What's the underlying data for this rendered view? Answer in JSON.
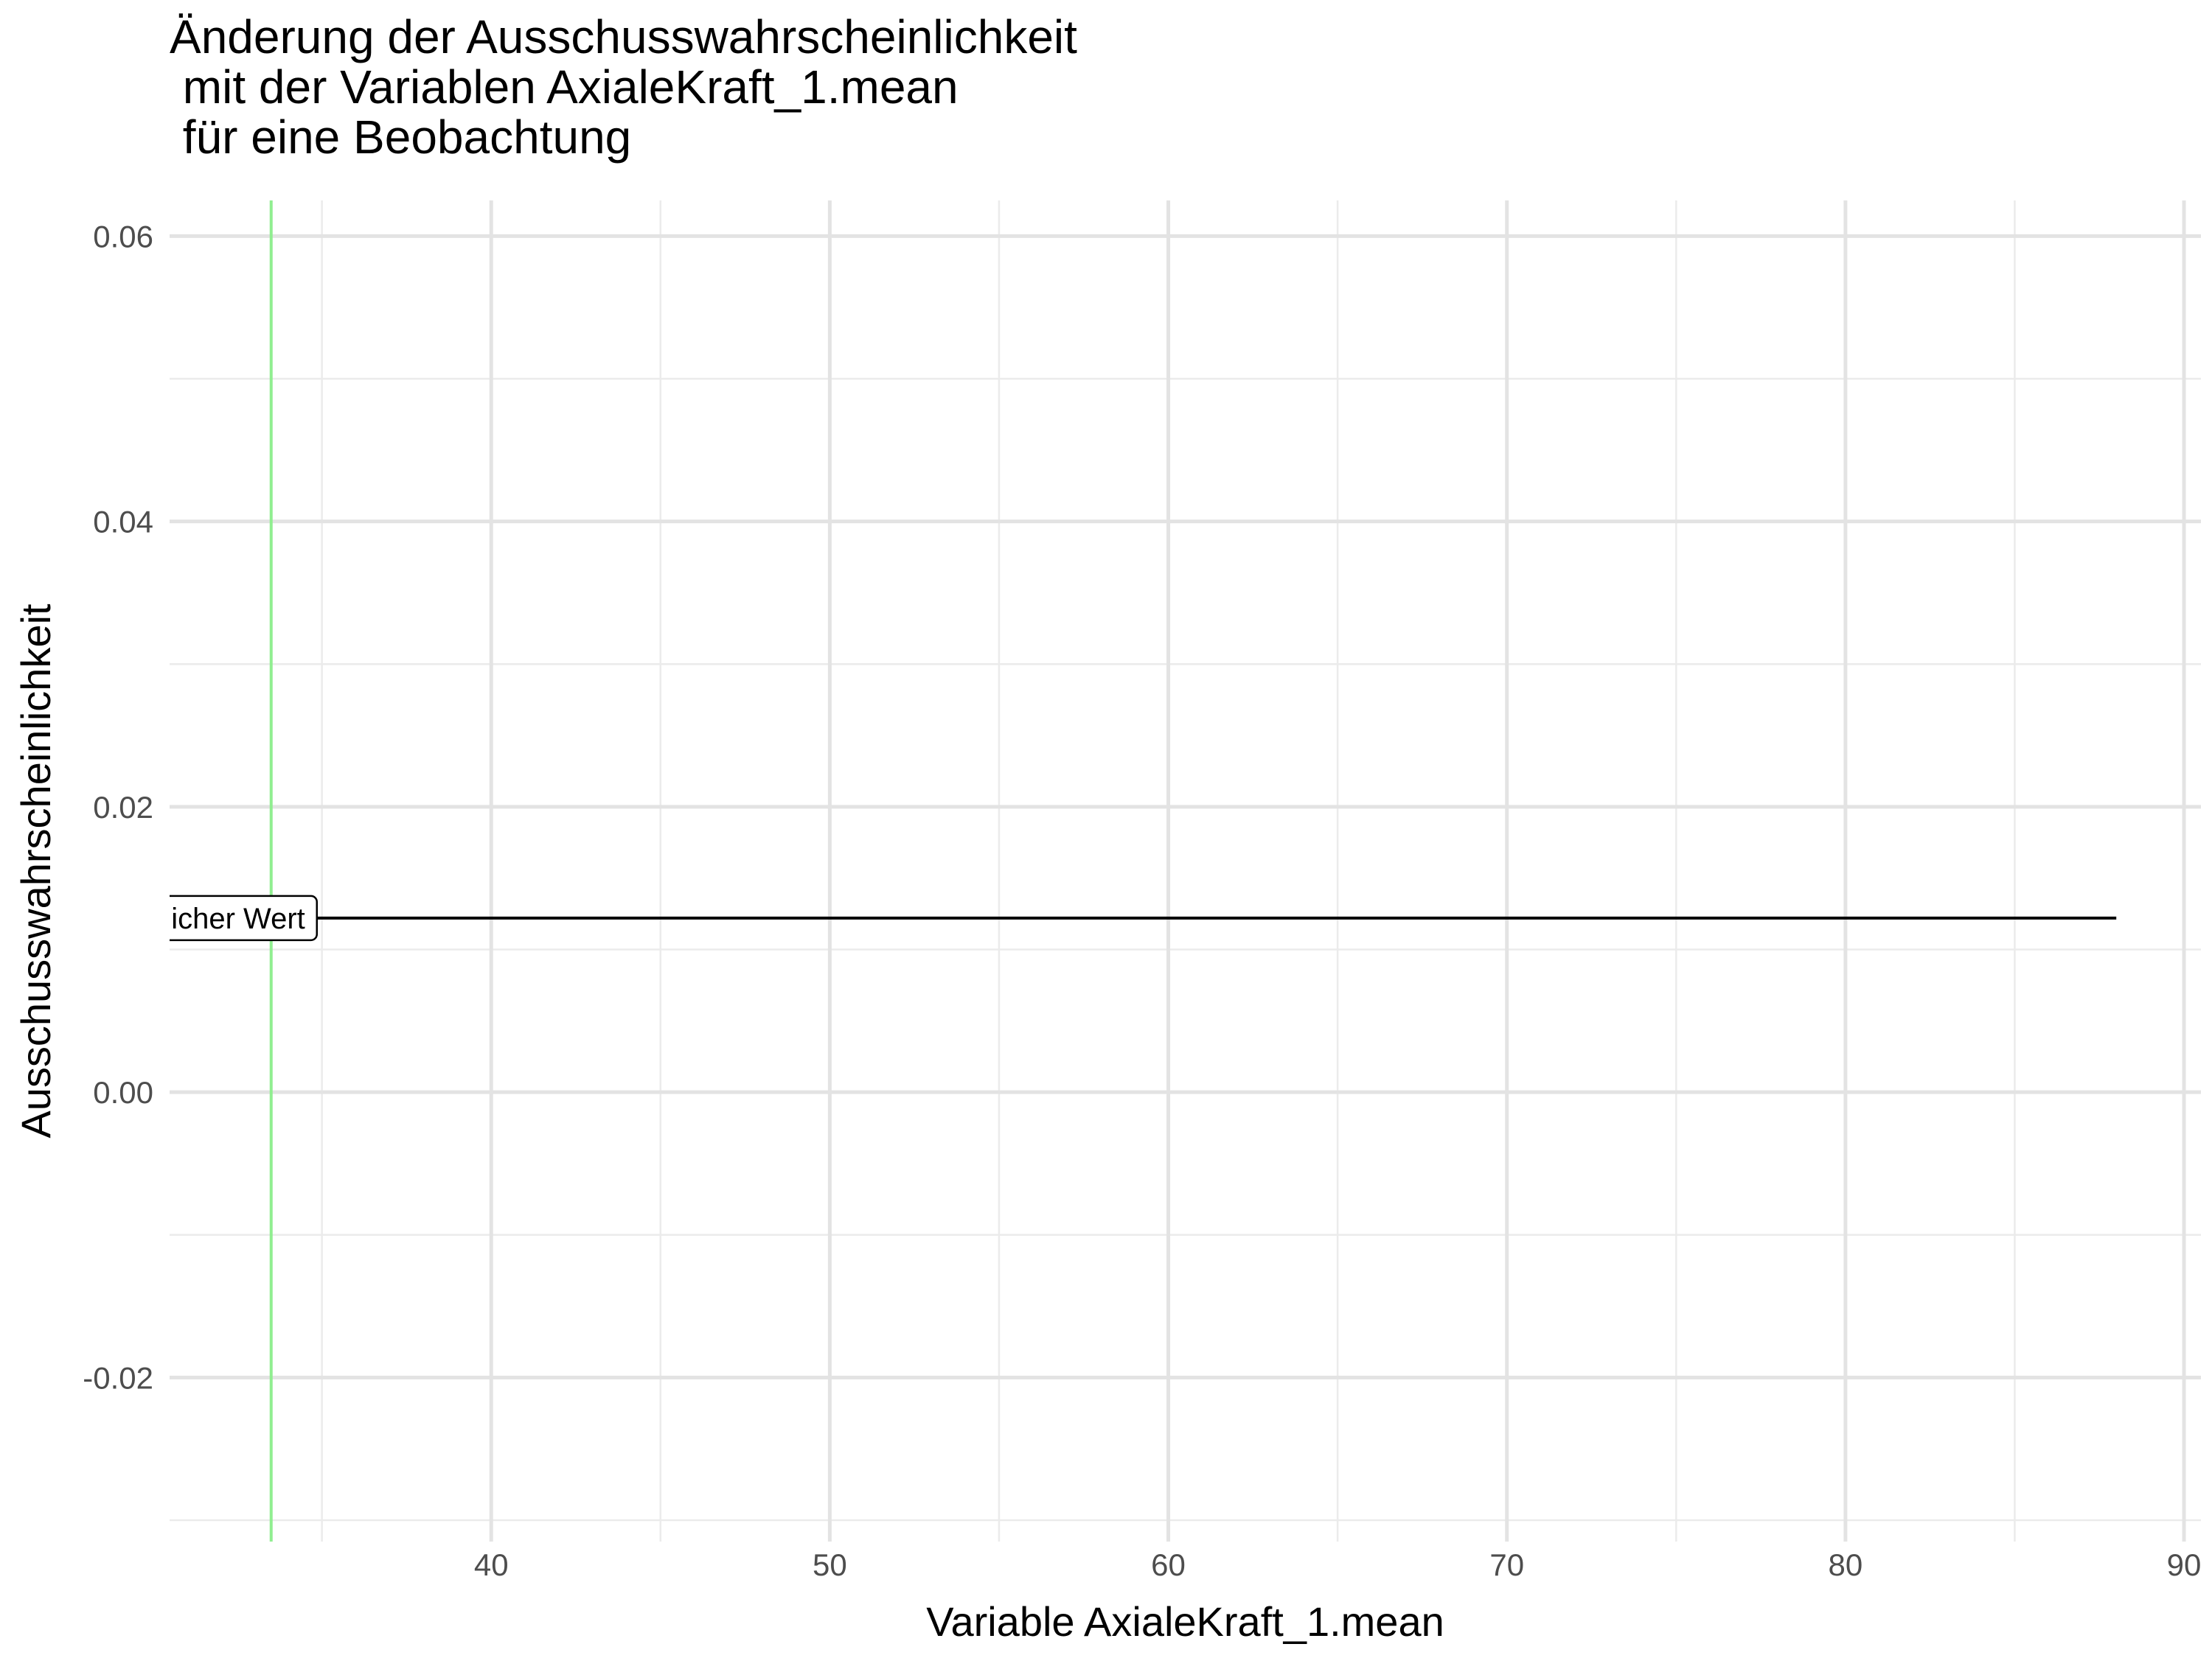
{
  "chart_data": {
    "type": "line",
    "title_lines": [
      "Änderung der Ausschusswahrscheinlichkeit",
      " mit der Variablen AxialeKraft_1.mean",
      " für eine Beobachtung"
    ],
    "xlabel": "Variable AxialeKraft_1.mean",
    "ylabel": "Ausschusswahrscheinlichkeit",
    "xlim": [
      30.5,
      90.5
    ],
    "ylim": [
      -0.0315,
      0.0625
    ],
    "x_ticks": [
      40,
      50,
      60,
      70,
      80,
      90
    ],
    "x_tick_labels": [
      "40",
      "50",
      "60",
      "70",
      "80",
      "90"
    ],
    "x_minor_ticks": [
      35,
      45,
      55,
      65,
      75,
      85
    ],
    "y_ticks": [
      -0.02,
      0.0,
      0.02,
      0.04,
      0.06
    ],
    "y_tick_labels": [
      "-0.02",
      "0.00",
      "0.02",
      "0.04",
      "0.06"
    ],
    "y_minor_ticks": [
      -0.03,
      -0.01,
      0.01,
      0.03,
      0.05
    ],
    "grid": true,
    "series": [
      {
        "x": [
          31.0,
          88.0
        ],
        "y": [
          0.0122,
          0.0122
        ],
        "color": "#000000"
      }
    ],
    "vline": {
      "x": 33.5,
      "color": "#90EE90"
    },
    "annotation": {
      "text": "sächlicher Wert",
      "x": 33.5,
      "y": 0.0122
    }
  }
}
